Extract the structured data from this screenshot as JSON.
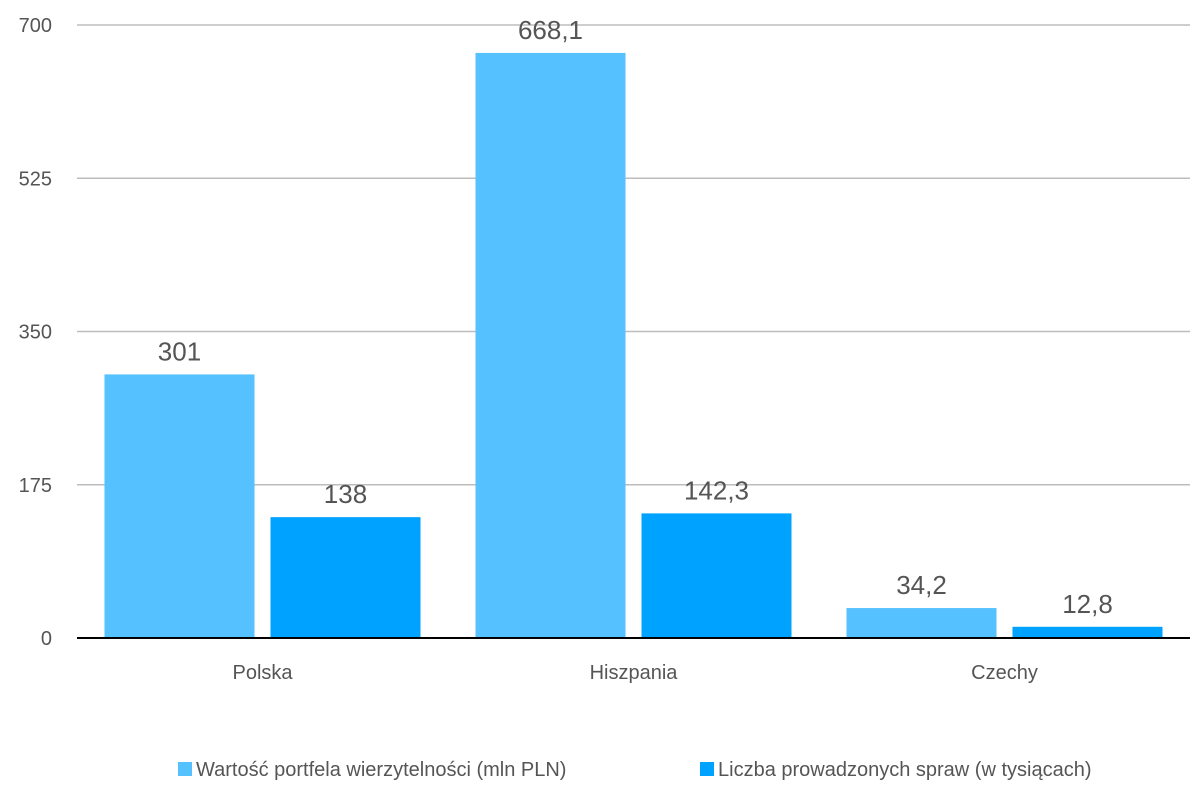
{
  "chart_data": {
    "type": "bar",
    "categories": [
      "Polska",
      "Hiszpania",
      "Czechy"
    ],
    "series": [
      {
        "name": "Wartość portfela wierzytelności (mln PLN)",
        "values": [
          301,
          668.1,
          34.2
        ],
        "labels": [
          "301",
          "668,1",
          "34,2"
        ],
        "color": "#55C1FF"
      },
      {
        "name": "Liczba prowadzonych spraw (w tysiącach)",
        "values": [
          138,
          142.3,
          12.8
        ],
        "labels": [
          "138",
          "142,3",
          "12,8"
        ],
        "color": "#00A2FF"
      }
    ],
    "yticks": [
      "0",
      "175",
      "350",
      "525",
      "700"
    ],
    "ylim": [
      0,
      700
    ],
    "grid": true,
    "legend_position": "bottom",
    "title": "",
    "xlabel": "",
    "ylabel": ""
  }
}
